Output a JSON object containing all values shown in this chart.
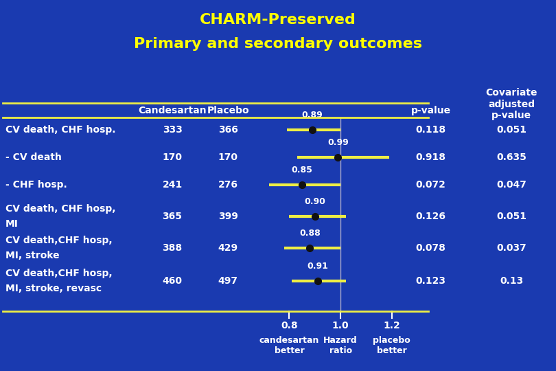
{
  "title_line1": "CHARM-Preserved",
  "title_line2": "Primary and secondary outcomes",
  "title_color": "#FFFF00",
  "bg_color": "#1a3ab0",
  "text_color": "#FFFFFF",
  "yellow_color": "#EEEE44",
  "rows": [
    {
      "label_line1": "CV death, CHF hosp.",
      "label_line2": "",
      "candesartan": "333",
      "placebo": "366",
      "hr": 0.89,
      "hr_label": "0.89",
      "ci_low": 0.79,
      "ci_high": 1.0,
      "pvalue": "0.118",
      "adj_pvalue": "0.051",
      "two_line": false
    },
    {
      "label_line1": "- CV death",
      "label_line2": "",
      "candesartan": "170",
      "placebo": "170",
      "hr": 0.99,
      "hr_label": "0.99",
      "ci_low": 0.83,
      "ci_high": 1.19,
      "pvalue": "0.918",
      "adj_pvalue": "0.635",
      "two_line": false
    },
    {
      "label_line1": "- CHF hosp.",
      "label_line2": "",
      "candesartan": "241",
      "placebo": "276",
      "hr": 0.85,
      "hr_label": "0.85",
      "ci_low": 0.72,
      "ci_high": 1.0,
      "pvalue": "0.072",
      "adj_pvalue": "0.047",
      "two_line": false
    },
    {
      "label_line1": "CV death, CHF hosp,",
      "label_line2": "MI",
      "candesartan": "365",
      "placebo": "399",
      "hr": 0.9,
      "hr_label": "0.90",
      "ci_low": 0.8,
      "ci_high": 1.02,
      "pvalue": "0.126",
      "adj_pvalue": "0.051",
      "two_line": true
    },
    {
      "label_line1": "CV death,CHF hosp,",
      "label_line2": "MI, stroke",
      "candesartan": "388",
      "placebo": "429",
      "hr": 0.88,
      "hr_label": "0.88",
      "ci_low": 0.78,
      "ci_high": 0.999,
      "pvalue": "0.078",
      "adj_pvalue": "0.037",
      "two_line": true
    },
    {
      "label_line1": "CV death,CHF hosp,",
      "label_line2": "MI, stroke, revasc",
      "candesartan": "460",
      "placebo": "497",
      "hr": 0.91,
      "hr_label": "0.91",
      "ci_low": 0.81,
      "ci_high": 1.02,
      "pvalue": "0.123",
      "adj_pvalue": "0.13",
      "two_line": true
    }
  ],
  "forest_xlim": [
    0.68,
    1.32
  ],
  "xticks": [
    0.8,
    1.0,
    1.2
  ],
  "xticklabels": [
    "0.8",
    "1.0",
    "1.2"
  ],
  "xlabel_left": "candesartan\nbetter",
  "xlabel_center": "Hazard\nratio",
  "xlabel_right": "placebo\nbetter",
  "header_candesartan": "Candesartan",
  "header_placebo": "Placebo",
  "header_pvalue": "p-value",
  "header_adj_pvalue": "Covariate\nadjusted\np-value"
}
